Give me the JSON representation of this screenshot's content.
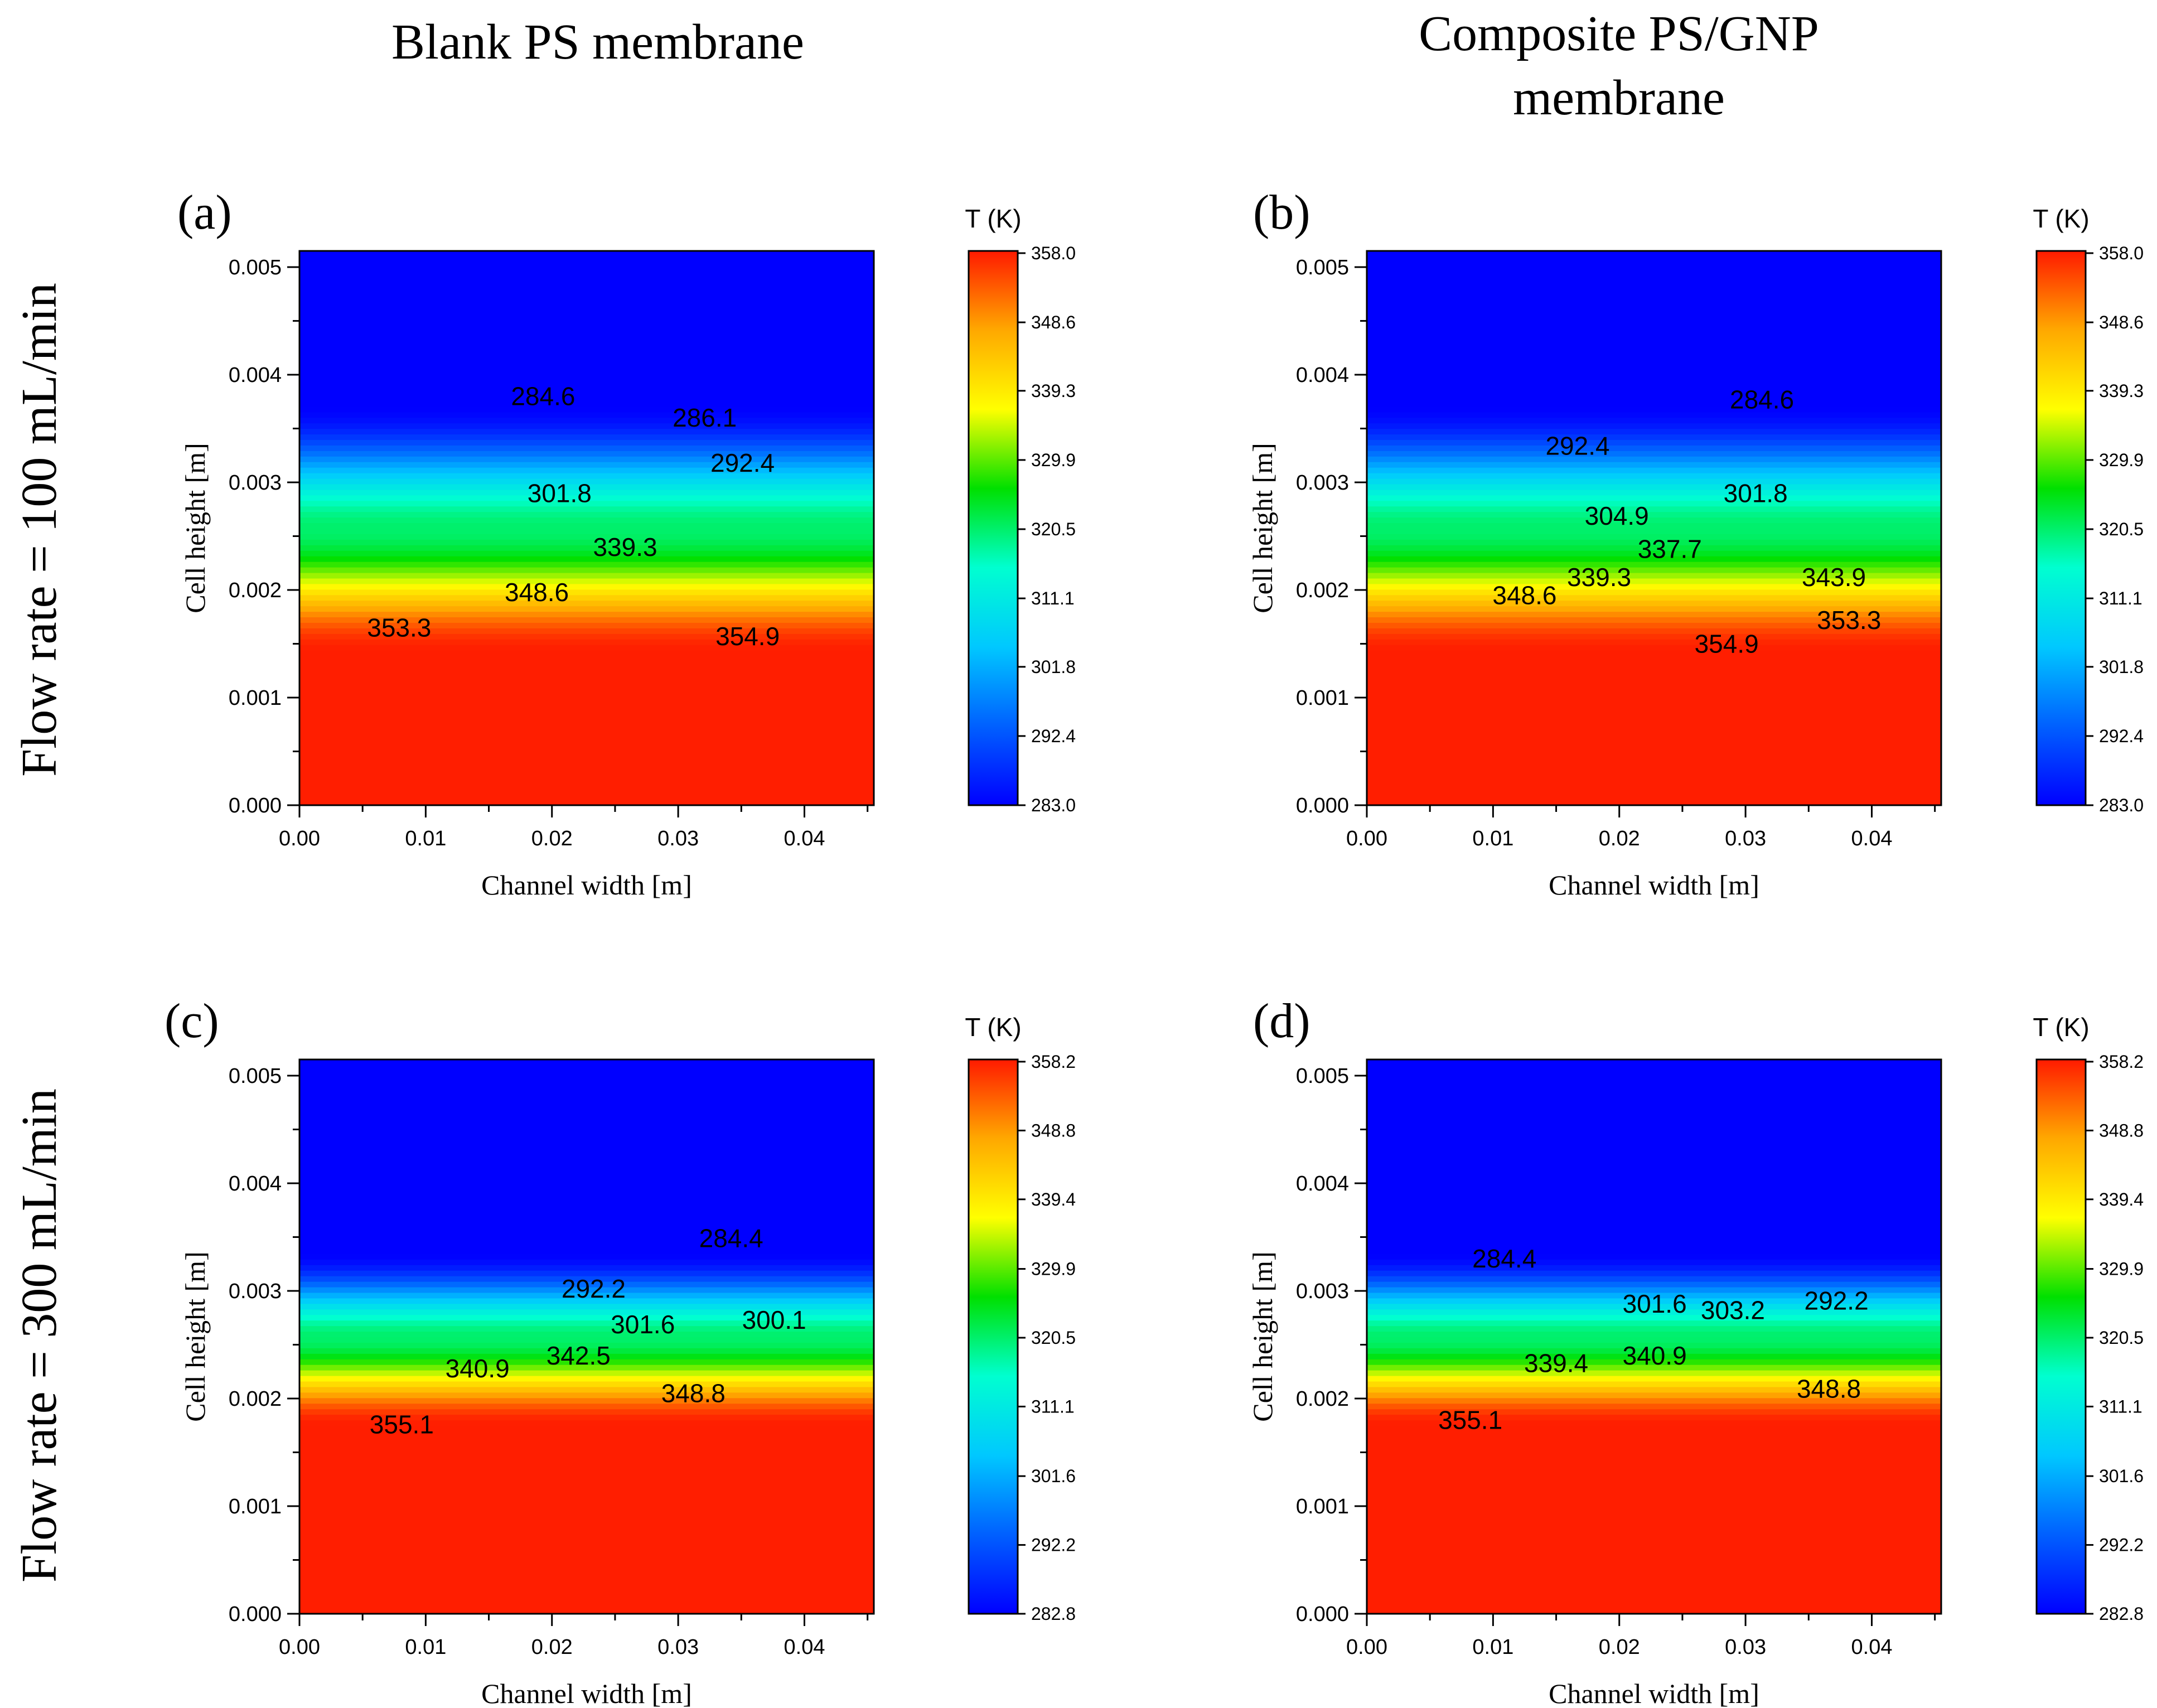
{
  "figure": {
    "column_titles": [
      "Blank PS membrane",
      "Composite PS/GNP",
      "membrane"
    ],
    "row_titles": [
      "Flow rate = 100 mL/min",
      "Flow rate = 300 mL/min"
    ]
  },
  "colors": {
    "scale": [
      "#0000ff",
      "#0060ff",
      "#00c8ff",
      "#00ffd0",
      "#00e000",
      "#ffff00",
      "#ffa800",
      "#ff1a00"
    ]
  },
  "chart_data": [
    {
      "type": "heatmap",
      "panel_label": "(a)",
      "xlabel": "Channel width [m]",
      "ylabel": "Cell height [m]",
      "xlim": [
        0,
        0.0455
      ],
      "ylim": [
        0,
        0.00515
      ],
      "x_ticks": [
        0.0,
        0.01,
        0.02,
        0.03,
        0.04
      ],
      "x_tick_labels": [
        "0.00",
        "0.01",
        "0.02",
        "0.03",
        "0.04"
      ],
      "y_ticks": [
        0.0,
        0.001,
        0.002,
        0.003,
        0.004,
        0.005
      ],
      "y_tick_labels": [
        "0.000",
        "0.001",
        "0.002",
        "0.003",
        "0.004",
        "0.005"
      ],
      "colorbar": {
        "title": "T (K)",
        "min": 283.0,
        "max": 358.3,
        "ticks": [
          358.0,
          348.6,
          339.3,
          329.9,
          320.5,
          311.1,
          301.8,
          292.4,
          283.0
        ],
        "tick_labels": [
          "358.0",
          "348.6",
          "339.3",
          "329.9",
          "320.5",
          "311.1",
          "301.8",
          "292.4",
          "283.0"
        ]
      },
      "profile": {
        "interface_y": 0.00257,
        "hot_y": 0.00143,
        "cold_y": 0.00372,
        "t_hot": 358.0,
        "t_cold": 283.0,
        "t_low": 283.0,
        "t_high": 358.3
      },
      "contour_labels": [
        {
          "text": "284.6",
          "x": 0.0193,
          "y": 0.0038
        },
        {
          "text": "286.1",
          "x": 0.0321,
          "y": 0.0036
        },
        {
          "text": "292.4",
          "x": 0.0351,
          "y": 0.00318
        },
        {
          "text": "301.8",
          "x": 0.0206,
          "y": 0.0029
        },
        {
          "text": "339.3",
          "x": 0.0258,
          "y": 0.0024
        },
        {
          "text": "348.6",
          "x": 0.0188,
          "y": 0.00198
        },
        {
          "text": "353.3",
          "x": 0.0079,
          "y": 0.00165
        },
        {
          "text": "354.9",
          "x": 0.0355,
          "y": 0.00157
        }
      ]
    },
    {
      "type": "heatmap",
      "panel_label": "(b)",
      "xlabel": "Channel width [m]",
      "ylabel": "Cell height [m]",
      "xlim": [
        0,
        0.0455
      ],
      "ylim": [
        0,
        0.00515
      ],
      "x_ticks": [
        0.0,
        0.01,
        0.02,
        0.03,
        0.04
      ],
      "x_tick_labels": [
        "0.00",
        "0.01",
        "0.02",
        "0.03",
        "0.04"
      ],
      "y_ticks": [
        0.0,
        0.001,
        0.002,
        0.003,
        0.004,
        0.005
      ],
      "y_tick_labels": [
        "0.000",
        "0.001",
        "0.002",
        "0.003",
        "0.004",
        "0.005"
      ],
      "colorbar": {
        "title": "T (K)",
        "min": 283.0,
        "max": 358.3,
        "ticks": [
          358.0,
          348.6,
          339.3,
          329.9,
          320.5,
          311.1,
          301.8,
          292.4,
          283.0
        ],
        "tick_labels": [
          "358.0",
          "348.6",
          "339.3",
          "329.9",
          "320.5",
          "311.1",
          "301.8",
          "292.4",
          "283.0"
        ]
      },
      "profile": {
        "interface_y": 0.00257,
        "hot_y": 0.00143,
        "cold_y": 0.00372,
        "t_hot": 358.0,
        "t_cold": 283.0,
        "t_low": 283.0,
        "t_high": 358.3
      },
      "contour_labels": [
        {
          "text": "284.6",
          "x": 0.0313,
          "y": 0.00377
        },
        {
          "text": "292.4",
          "x": 0.0167,
          "y": 0.00334
        },
        {
          "text": "301.8",
          "x": 0.0308,
          "y": 0.0029
        },
        {
          "text": "304.9",
          "x": 0.0198,
          "y": 0.00269
        },
        {
          "text": "337.7",
          "x": 0.024,
          "y": 0.00238
        },
        {
          "text": "339.3",
          "x": 0.0184,
          "y": 0.00212
        },
        {
          "text": "343.9",
          "x": 0.037,
          "y": 0.00212
        },
        {
          "text": "348.6",
          "x": 0.0125,
          "y": 0.00195
        },
        {
          "text": "353.3",
          "x": 0.0382,
          "y": 0.00172
        },
        {
          "text": "354.9",
          "x": 0.0285,
          "y": 0.0015
        }
      ]
    },
    {
      "type": "heatmap",
      "panel_label": "(c)",
      "xlabel": "Channel width [m]",
      "ylabel": "Cell height [m]",
      "xlim": [
        0,
        0.0455
      ],
      "ylim": [
        0,
        0.00515
      ],
      "x_ticks": [
        0.0,
        0.01,
        0.02,
        0.03,
        0.04
      ],
      "x_tick_labels": [
        "0.00",
        "0.01",
        "0.02",
        "0.03",
        "0.04"
      ],
      "y_ticks": [
        0.0,
        0.001,
        0.002,
        0.003,
        0.004,
        0.005
      ],
      "y_tick_labels": [
        "0.000",
        "0.001",
        "0.002",
        "0.003",
        "0.004",
        "0.005"
      ],
      "colorbar": {
        "title": "T (K)",
        "min": 282.8,
        "max": 358.5,
        "ticks": [
          358.2,
          348.8,
          339.4,
          329.9,
          320.5,
          311.1,
          301.6,
          292.2,
          282.8
        ],
        "tick_labels": [
          "358.2",
          "348.8",
          "339.4",
          "329.9",
          "320.5",
          "311.1",
          "301.6",
          "292.2",
          "282.8"
        ]
      },
      "profile": {
        "interface_y": 0.00257,
        "hot_y": 0.00176,
        "cold_y": 0.00336,
        "t_hot": 358.2,
        "t_cold": 282.8,
        "t_low": 282.8,
        "t_high": 358.5
      },
      "contour_labels": [
        {
          "text": "284.4",
          "x": 0.0342,
          "y": 0.00349
        },
        {
          "text": "292.2",
          "x": 0.0233,
          "y": 0.00302
        },
        {
          "text": "301.6",
          "x": 0.0272,
          "y": 0.00269
        },
        {
          "text": "300.1",
          "x": 0.0376,
          "y": 0.00273
        },
        {
          "text": "342.5",
          "x": 0.0221,
          "y": 0.0024
        },
        {
          "text": "340.9",
          "x": 0.0141,
          "y": 0.00228
        },
        {
          "text": "348.8",
          "x": 0.0312,
          "y": 0.00205
        },
        {
          "text": "355.1",
          "x": 0.0081,
          "y": 0.00176
        }
      ]
    },
    {
      "type": "heatmap",
      "panel_label": "(d)",
      "xlabel": "Channel width [m]",
      "ylabel": "Cell height [m]",
      "xlim": [
        0,
        0.0455
      ],
      "ylim": [
        0,
        0.00515
      ],
      "x_ticks": [
        0.0,
        0.01,
        0.02,
        0.03,
        0.04
      ],
      "x_tick_labels": [
        "0.00",
        "0.01",
        "0.02",
        "0.03",
        "0.04"
      ],
      "y_ticks": [
        0.0,
        0.001,
        0.002,
        0.003,
        0.004,
        0.005
      ],
      "y_tick_labels": [
        "0.000",
        "0.001",
        "0.002",
        "0.003",
        "0.004",
        "0.005"
      ],
      "colorbar": {
        "title": "T (K)",
        "min": 282.8,
        "max": 358.5,
        "ticks": [
          358.2,
          348.8,
          339.4,
          329.9,
          320.5,
          311.1,
          301.6,
          292.2,
          282.8
        ],
        "tick_labels": [
          "358.2",
          "348.8",
          "339.4",
          "329.9",
          "320.5",
          "311.1",
          "301.6",
          "292.2",
          "282.8"
        ]
      },
      "profile": {
        "interface_y": 0.00257,
        "hot_y": 0.00176,
        "cold_y": 0.00336,
        "t_hot": 358.2,
        "t_cold": 282.8,
        "t_low": 282.8,
        "t_high": 358.5
      },
      "contour_labels": [
        {
          "text": "284.4",
          "x": 0.0109,
          "y": 0.0033
        },
        {
          "text": "301.6",
          "x": 0.0228,
          "y": 0.00288
        },
        {
          "text": "303.2",
          "x": 0.029,
          "y": 0.00282
        },
        {
          "text": "292.2",
          "x": 0.0372,
          "y": 0.00291
        },
        {
          "text": "339.4",
          "x": 0.015,
          "y": 0.00233
        },
        {
          "text": "340.9",
          "x": 0.0228,
          "y": 0.0024
        },
        {
          "text": "348.8",
          "x": 0.0366,
          "y": 0.00209
        },
        {
          "text": "355.1",
          "x": 0.0082,
          "y": 0.0018
        }
      ]
    }
  ]
}
